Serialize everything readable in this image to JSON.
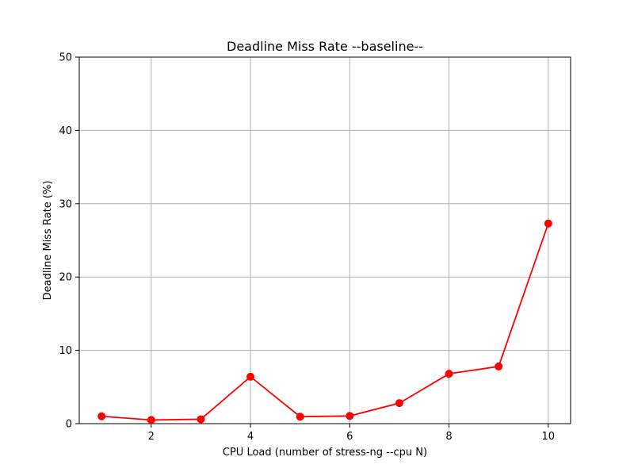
{
  "chart_data": {
    "type": "line",
    "title": "Deadline Miss Rate --baseline--",
    "xlabel": "CPU Load (number of stress-ng --cpu N)",
    "ylabel": "Deadline Miss Rate (%)",
    "xlim": [
      0.55,
      10.45
    ],
    "ylim": [
      0,
      50
    ],
    "x_ticks": [
      2,
      4,
      6,
      8,
      10
    ],
    "y_ticks": [
      0,
      10,
      20,
      30,
      40,
      50
    ],
    "grid": true,
    "legend": "none",
    "series": [
      {
        "color": "#ff0000",
        "marker": "circle",
        "x": [
          1,
          2,
          3,
          4,
          5,
          6,
          7,
          8,
          9,
          10
        ],
        "y": [
          1.0,
          0.5,
          0.6,
          6.4,
          0.95,
          1.05,
          2.8,
          6.8,
          7.8,
          27.3
        ]
      }
    ]
  }
}
